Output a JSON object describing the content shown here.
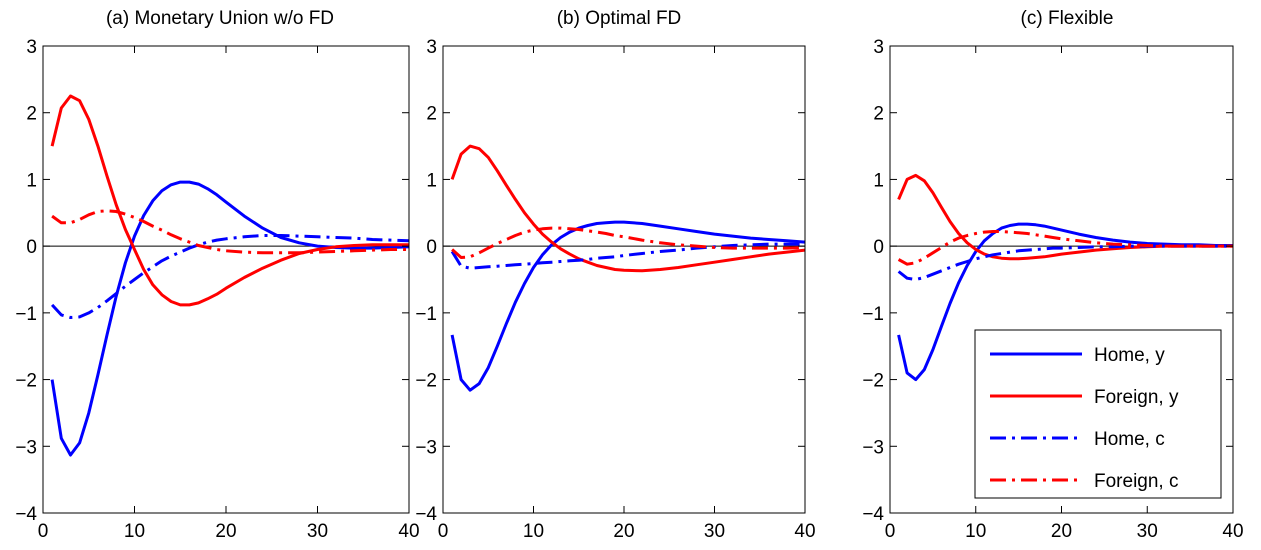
{
  "colors": {
    "home": "#0000ff",
    "foreign": "#ff0000",
    "axis": "#000000"
  },
  "legend": {
    "entries": [
      {
        "label": "Home, y",
        "color": "#0000ff",
        "style": "solid"
      },
      {
        "label": "Foreign, y",
        "color": "#ff0000",
        "style": "solid"
      },
      {
        "label": "Home, c",
        "color": "#0000ff",
        "style": "dashdot"
      },
      {
        "label": "Foreign, c",
        "color": "#ff0000",
        "style": "dashdot"
      }
    ]
  },
  "chart_data": [
    {
      "type": "line",
      "title": "(a) Monetary Union w/o FD",
      "xlim": [
        0,
        40
      ],
      "ylim": [
        -4,
        3
      ],
      "xticks": [
        "0",
        "10",
        "20",
        "30",
        "40"
      ],
      "yticks": [
        "−4",
        "−3",
        "−2",
        "−1",
        "0",
        "1",
        "2",
        "3"
      ],
      "x": [
        1,
        2,
        3,
        4,
        5,
        6,
        7,
        8,
        9,
        10,
        11,
        12,
        13,
        14,
        15,
        16,
        17,
        18,
        19,
        20,
        22,
        24,
        26,
        28,
        30,
        32,
        34,
        36,
        38,
        40
      ],
      "series": [
        {
          "name": "Home, y",
          "color": "#0000ff",
          "style": "solid",
          "values": [
            -2.0,
            -2.88,
            -3.13,
            -2.95,
            -2.5,
            -1.93,
            -1.33,
            -0.75,
            -0.25,
            0.15,
            0.46,
            0.68,
            0.83,
            0.92,
            0.96,
            0.96,
            0.93,
            0.86,
            0.77,
            0.66,
            0.45,
            0.27,
            0.13,
            0.05,
            0.0,
            -0.02,
            -0.03,
            -0.03,
            -0.02,
            -0.01
          ]
        },
        {
          "name": "Foreign, y",
          "color": "#ff0000",
          "style": "solid",
          "values": [
            1.5,
            2.07,
            2.25,
            2.18,
            1.9,
            1.5,
            1.05,
            0.62,
            0.25,
            -0.05,
            -0.35,
            -0.58,
            -0.73,
            -0.83,
            -0.88,
            -0.88,
            -0.85,
            -0.79,
            -0.72,
            -0.63,
            -0.47,
            -0.33,
            -0.21,
            -0.11,
            -0.05,
            -0.01,
            0.01,
            0.02,
            0.02,
            0.02
          ]
        },
        {
          "name": "Home, c",
          "color": "#0000ff",
          "style": "dashdot",
          "values": [
            -0.88,
            -1.03,
            -1.07,
            -1.06,
            -1.0,
            -0.92,
            -0.82,
            -0.71,
            -0.6,
            -0.5,
            -0.4,
            -0.31,
            -0.22,
            -0.15,
            -0.09,
            -0.03,
            0.02,
            0.06,
            0.09,
            0.11,
            0.14,
            0.16,
            0.16,
            0.15,
            0.14,
            0.13,
            0.12,
            0.1,
            0.09,
            0.08
          ]
        },
        {
          "name": "Foreign, c",
          "color": "#ff0000",
          "style": "dashdot",
          "values": [
            0.45,
            0.35,
            0.35,
            0.4,
            0.47,
            0.52,
            0.53,
            0.52,
            0.48,
            0.43,
            0.37,
            0.3,
            0.24,
            0.17,
            0.11,
            0.06,
            0.01,
            -0.02,
            -0.05,
            -0.07,
            -0.09,
            -0.1,
            -0.1,
            -0.1,
            -0.09,
            -0.08,
            -0.07,
            -0.06,
            -0.05,
            -0.05
          ]
        }
      ]
    },
    {
      "type": "line",
      "title": "(b) Optimal FD",
      "xlim": [
        0,
        40
      ],
      "ylim": [
        -4,
        3
      ],
      "xticks": [
        "0",
        "10",
        "20",
        "30",
        "40"
      ],
      "yticks": [
        "−4",
        "−3",
        "−2",
        "−1",
        "0",
        "1",
        "2",
        "3"
      ],
      "x": [
        1,
        2,
        3,
        4,
        5,
        6,
        7,
        8,
        9,
        10,
        11,
        12,
        13,
        14,
        15,
        16,
        17,
        18,
        19,
        20,
        22,
        24,
        26,
        28,
        30,
        32,
        34,
        36,
        38,
        40
      ],
      "series": [
        {
          "name": "Home, y",
          "color": "#0000ff",
          "style": "solid",
          "values": [
            -1.33,
            -2.0,
            -2.16,
            -2.06,
            -1.82,
            -1.5,
            -1.16,
            -0.84,
            -0.56,
            -0.32,
            -0.13,
            0.02,
            0.13,
            0.21,
            0.27,
            0.31,
            0.34,
            0.35,
            0.36,
            0.36,
            0.34,
            0.3,
            0.26,
            0.22,
            0.18,
            0.15,
            0.12,
            0.1,
            0.08,
            0.06
          ]
        },
        {
          "name": "Foreign, y",
          "color": "#ff0000",
          "style": "solid",
          "values": [
            1.0,
            1.38,
            1.5,
            1.46,
            1.33,
            1.13,
            0.91,
            0.7,
            0.5,
            0.33,
            0.18,
            0.06,
            -0.04,
            -0.12,
            -0.19,
            -0.24,
            -0.29,
            -0.32,
            -0.35,
            -0.36,
            -0.37,
            -0.35,
            -0.32,
            -0.28,
            -0.24,
            -0.2,
            -0.16,
            -0.12,
            -0.09,
            -0.06
          ]
        },
        {
          "name": "Home, c",
          "color": "#0000ff",
          "style": "dashdot",
          "values": [
            -0.08,
            -0.3,
            -0.33,
            -0.32,
            -0.31,
            -0.3,
            -0.29,
            -0.28,
            -0.27,
            -0.26,
            -0.25,
            -0.24,
            -0.23,
            -0.22,
            -0.21,
            -0.2,
            -0.18,
            -0.17,
            -0.16,
            -0.14,
            -0.11,
            -0.08,
            -0.06,
            -0.03,
            -0.01,
            0.01,
            0.02,
            0.03,
            0.03,
            0.03
          ]
        },
        {
          "name": "Foreign, c",
          "color": "#ff0000",
          "style": "dashdot",
          "values": [
            -0.05,
            -0.17,
            -0.16,
            -0.1,
            -0.03,
            0.04,
            0.1,
            0.16,
            0.21,
            0.24,
            0.26,
            0.27,
            0.27,
            0.26,
            0.25,
            0.23,
            0.21,
            0.19,
            0.16,
            0.14,
            0.09,
            0.05,
            0.02,
            0.0,
            -0.02,
            -0.03,
            -0.03,
            -0.03,
            -0.03,
            -0.02
          ]
        }
      ]
    },
    {
      "type": "line",
      "title": "(c) Flexible",
      "xlim": [
        0,
        40
      ],
      "ylim": [
        -4,
        3
      ],
      "xticks": [
        "0",
        "10",
        "20",
        "30",
        "40"
      ],
      "yticks": [
        "−4",
        "−3",
        "−2",
        "−1",
        "0",
        "1",
        "2",
        "3"
      ],
      "x": [
        1,
        2,
        3,
        4,
        5,
        6,
        7,
        8,
        9,
        10,
        11,
        12,
        13,
        14,
        15,
        16,
        17,
        18,
        19,
        20,
        22,
        24,
        26,
        28,
        30,
        32,
        34,
        36,
        38,
        40
      ],
      "series": [
        {
          "name": "Home, y",
          "color": "#0000ff",
          "style": "solid",
          "values": [
            -1.33,
            -1.9,
            -2.0,
            -1.85,
            -1.55,
            -1.2,
            -0.86,
            -0.55,
            -0.29,
            -0.08,
            0.08,
            0.19,
            0.27,
            0.31,
            0.33,
            0.33,
            0.32,
            0.3,
            0.27,
            0.24,
            0.18,
            0.13,
            0.09,
            0.06,
            0.04,
            0.03,
            0.02,
            0.02,
            0.01,
            0.01
          ]
        },
        {
          "name": "Foreign, y",
          "color": "#ff0000",
          "style": "solid",
          "values": [
            0.7,
            1.0,
            1.06,
            0.98,
            0.8,
            0.58,
            0.37,
            0.19,
            0.05,
            -0.05,
            -0.12,
            -0.16,
            -0.18,
            -0.19,
            -0.19,
            -0.18,
            -0.17,
            -0.16,
            -0.14,
            -0.12,
            -0.09,
            -0.06,
            -0.04,
            -0.02,
            -0.01,
            0.0,
            0.0,
            0.0,
            0.0,
            0.0
          ]
        },
        {
          "name": "Home, c",
          "color": "#0000ff",
          "style": "dashdot",
          "values": [
            -0.38,
            -0.48,
            -0.5,
            -0.47,
            -0.42,
            -0.37,
            -0.32,
            -0.27,
            -0.23,
            -0.19,
            -0.16,
            -0.13,
            -0.11,
            -0.09,
            -0.07,
            -0.06,
            -0.05,
            -0.04,
            -0.03,
            -0.03,
            -0.02,
            -0.01,
            -0.01,
            0.0,
            0.0,
            0.0,
            0.0,
            0.0,
            0.0,
            0.0
          ]
        },
        {
          "name": "Foreign, c",
          "color": "#ff0000",
          "style": "dashdot",
          "values": [
            -0.2,
            -0.27,
            -0.25,
            -0.18,
            -0.1,
            -0.02,
            0.06,
            0.12,
            0.16,
            0.19,
            0.21,
            0.22,
            0.22,
            0.21,
            0.2,
            0.19,
            0.17,
            0.15,
            0.13,
            0.11,
            0.08,
            0.05,
            0.03,
            0.02,
            0.01,
            0.0,
            0.0,
            0.0,
            0.0,
            0.0
          ]
        }
      ]
    }
  ]
}
